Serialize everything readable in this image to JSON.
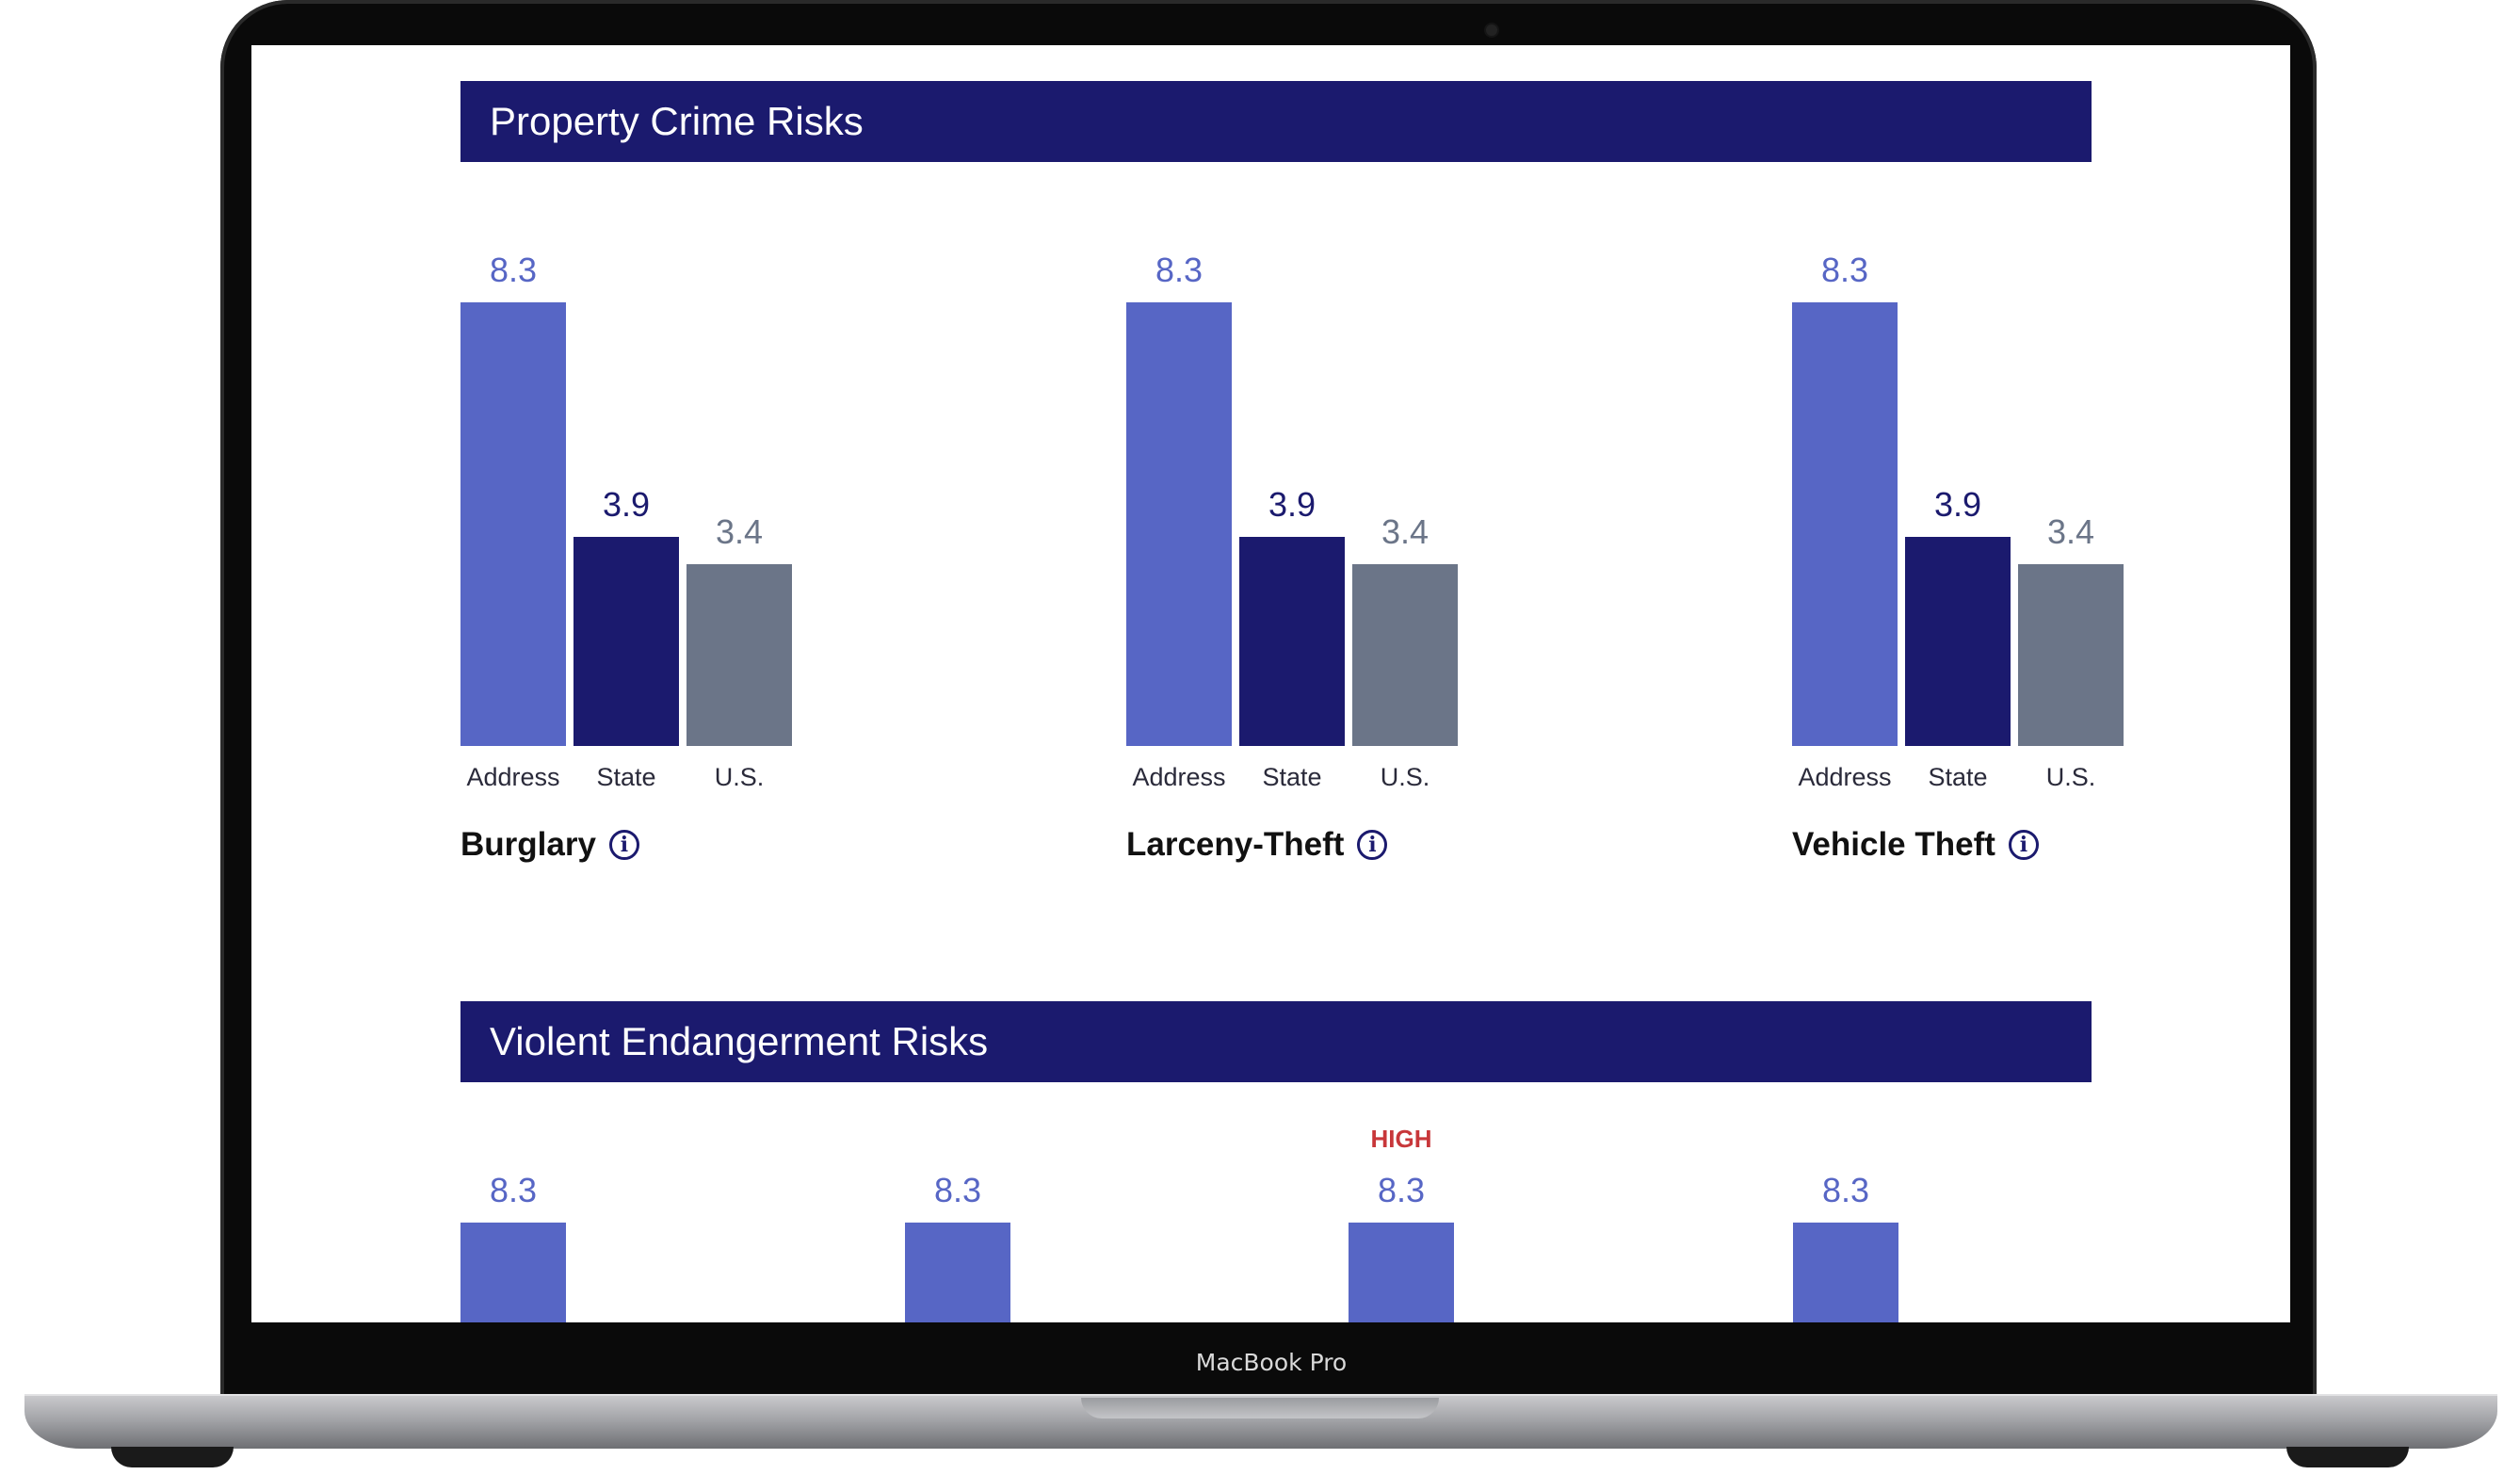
{
  "device_label": "MacBook Pro",
  "colors": {
    "header_bg": "#1b1a6e",
    "address": "#5766c5",
    "state": "#1b1a6e",
    "us": "#6b7588",
    "high": "#c8373a"
  },
  "property": {
    "title": "Property Crime Risks",
    "charts": [
      {
        "title": "Burglary",
        "bars": [
          {
            "label": "Address",
            "value": 8.3,
            "value_text": "8.3"
          },
          {
            "label": "State",
            "value": 3.9,
            "value_text": "3.9"
          },
          {
            "label": "U.S.",
            "value": 3.4,
            "value_text": "3.4"
          }
        ]
      },
      {
        "title": "Larceny-Theft",
        "bars": [
          {
            "label": "Address",
            "value": 8.3,
            "value_text": "8.3"
          },
          {
            "label": "State",
            "value": 3.9,
            "value_text": "3.9"
          },
          {
            "label": "U.S.",
            "value": 3.4,
            "value_text": "3.4"
          }
        ]
      },
      {
        "title": "Vehicle Theft",
        "bars": [
          {
            "label": "Address",
            "value": 8.3,
            "value_text": "8.3"
          },
          {
            "label": "State",
            "value": 3.9,
            "value_text": "3.9"
          },
          {
            "label": "U.S.",
            "value": 3.4,
            "value_text": "3.4"
          }
        ]
      }
    ]
  },
  "violent": {
    "title": "Violent Endangerment Risks",
    "charts": [
      {
        "value": 8.3,
        "value_text": "8.3",
        "badge": ""
      },
      {
        "value": 8.3,
        "value_text": "8.3",
        "badge": ""
      },
      {
        "value": 8.3,
        "value_text": "8.3",
        "badge": "HIGH"
      },
      {
        "value": 8.3,
        "value_text": "8.3",
        "badge": ""
      }
    ]
  }
}
